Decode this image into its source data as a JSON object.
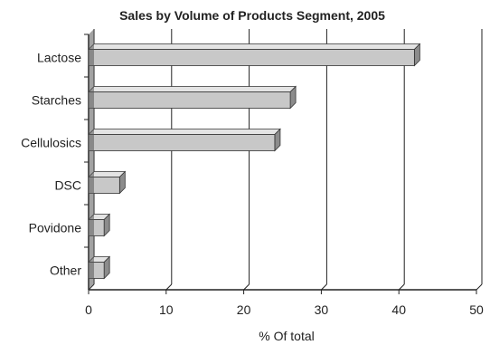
{
  "chart_data": {
    "type": "bar",
    "orientation": "horizontal",
    "title": "Sales by Volume of Products Segment, 2005",
    "xlabel": "% Of total",
    "ylabel": "",
    "categories": [
      "Lactose",
      "Starches",
      "Cellulosics",
      "DSC",
      "Povidone",
      "Other"
    ],
    "values": [
      42,
      26,
      24,
      4,
      2,
      2
    ],
    "xlim": [
      0,
      50
    ],
    "xticks": [
      "0",
      "10",
      "20",
      "30",
      "40",
      "50"
    ],
    "grid": "vertical",
    "legend": "none",
    "style": "3d",
    "colors": {
      "bar_face": "#c8c8c8",
      "bar_top": "#e4e4e4",
      "bar_side": "#8c8c8c",
      "grid": "#222222",
      "text": "#222222"
    }
  }
}
